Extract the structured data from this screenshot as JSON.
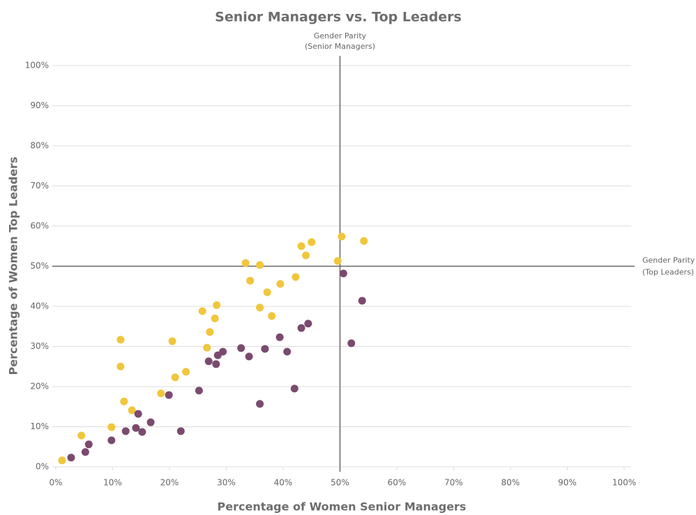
{
  "chart_data": {
    "type": "scatter",
    "title": "Senior Managers vs. Top Leaders",
    "xlabel": "Percentage of Women Senior Managers",
    "ylabel": "Percentage of Women Top Leaders",
    "xlim": [
      0,
      100
    ],
    "ylim": [
      0,
      100
    ],
    "xticks": [
      {
        "value": 0,
        "label": "0%"
      },
      {
        "value": 10,
        "label": "10%"
      },
      {
        "value": 20,
        "label": "20%"
      },
      {
        "value": 30,
        "label": "30%"
      },
      {
        "value": 40,
        "label": "40%"
      },
      {
        "value": 50,
        "label": "50%"
      },
      {
        "value": 60,
        "label": "60%"
      },
      {
        "value": 70,
        "label": "70%"
      },
      {
        "value": 80,
        "label": "80%"
      },
      {
        "value": 90,
        "label": "90%"
      },
      {
        "value": 100,
        "label": "100%"
      }
    ],
    "yticks": [
      {
        "value": 0,
        "label": "0%"
      },
      {
        "value": 10,
        "label": "10%"
      },
      {
        "value": 20,
        "label": "20%"
      },
      {
        "value": 30,
        "label": "30%"
      },
      {
        "value": 40,
        "label": "40%"
      },
      {
        "value": 50,
        "label": "50%"
      },
      {
        "value": 60,
        "label": "60%"
      },
      {
        "value": 70,
        "label": "70%"
      },
      {
        "value": 80,
        "label": "80%"
      },
      {
        "value": 90,
        "label": "90%"
      },
      {
        "value": 100,
        "label": "100%"
      }
    ],
    "grid": true,
    "reference_lines": [
      {
        "axis": "x",
        "value": 50,
        "label": [
          "Gender Parity",
          "(Senior Managers)"
        ]
      },
      {
        "axis": "y",
        "value": 50,
        "label": [
          "Gender Parity",
          "(Top Leaders)"
        ]
      }
    ],
    "series": [
      {
        "color": "#f0c63c",
        "x": [
          1.1,
          4.5,
          9.8,
          12.0,
          13.4,
          11.4,
          11.4,
          18.5,
          21.0,
          22.9,
          20.5,
          26.6,
          27.1,
          25.8,
          28.0,
          28.3,
          33.4,
          34.2,
          35.9,
          35.9,
          37.2,
          38.0,
          39.5,
          42.2,
          43.2,
          44.0,
          45.0,
          49.6,
          50.3,
          54.2
        ],
        "values": [
          1.6,
          7.8,
          9.9,
          16.3,
          14.1,
          31.7,
          25.0,
          18.3,
          22.3,
          23.7,
          31.3,
          29.7,
          33.6,
          38.8,
          37.0,
          40.3,
          50.8,
          46.4,
          50.3,
          39.7,
          43.5,
          37.6,
          45.6,
          47.3,
          55.0,
          52.7,
          56.0,
          51.3,
          57.4,
          56.3
        ]
      },
      {
        "color": "#7b4a6e",
        "x": [
          2.7,
          5.2,
          5.8,
          9.8,
          12.3,
          14.1,
          14.5,
          15.2,
          16.7,
          19.9,
          22.0,
          25.2,
          26.9,
          28.2,
          28.5,
          29.4,
          32.6,
          34.0,
          35.9,
          36.8,
          39.4,
          40.7,
          42.0,
          43.2,
          44.4,
          50.6,
          52.0,
          53.9
        ],
        "values": [
          2.3,
          3.7,
          5.6,
          6.6,
          8.9,
          9.7,
          13.2,
          8.7,
          11.1,
          17.9,
          8.9,
          19.0,
          26.3,
          25.6,
          27.8,
          28.7,
          29.6,
          27.5,
          15.7,
          29.4,
          32.3,
          28.7,
          19.5,
          34.6,
          35.7,
          48.2,
          30.8,
          41.4
        ]
      }
    ]
  }
}
